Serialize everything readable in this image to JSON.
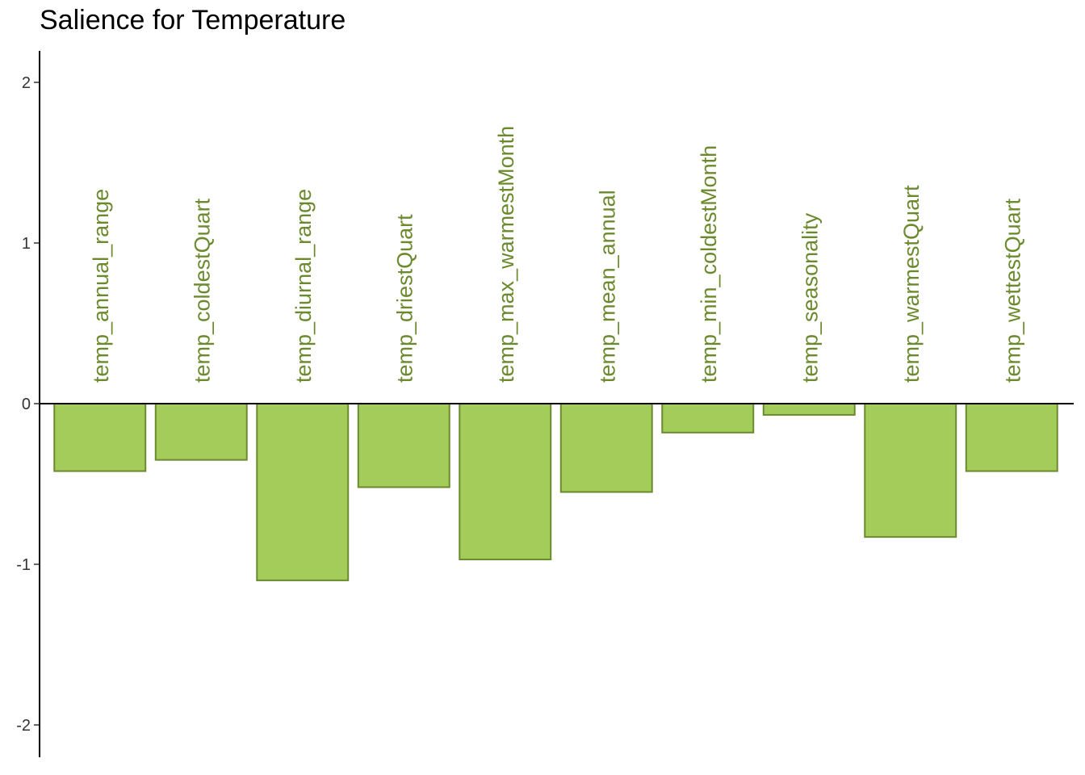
{
  "chart_data": {
    "type": "bar",
    "title": "Salience for Temperature",
    "xlabel": "",
    "ylabel": "",
    "categories": [
      "temp_annual_range",
      "temp_coldestQuart",
      "temp_diurnal_range",
      "temp_driestQuart",
      "temp_max_warmestMonth",
      "temp_mean_annual",
      "temp_min_coldestMonth",
      "temp_seasonality",
      "temp_warmestQuart",
      "temp_wettestQuart"
    ],
    "values": [
      -0.42,
      -0.35,
      -1.1,
      -0.52,
      -0.97,
      -0.55,
      -0.18,
      -0.07,
      -0.83,
      -0.42
    ],
    "ylim": [
      -2.2,
      2.2
    ],
    "yticks": [
      -2,
      -1,
      0,
      1,
      2
    ],
    "grid": false,
    "legend": "none",
    "colors": {
      "bar_fill": "#a3cc5a",
      "bar_stroke": "#6b8a2e",
      "label": "#6b8a2e",
      "axis": "#000000"
    }
  }
}
